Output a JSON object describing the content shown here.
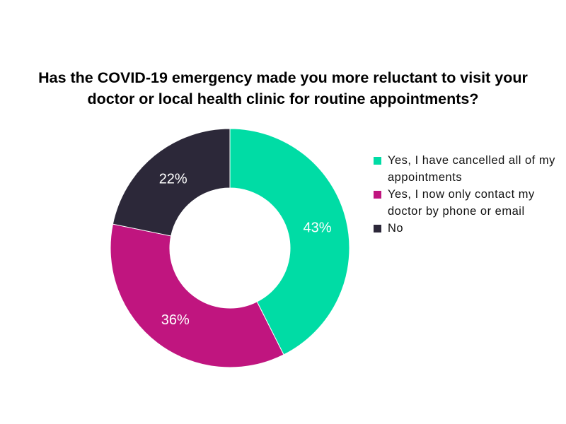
{
  "chart_data": {
    "type": "pie",
    "subtype": "donut",
    "title_lines": [
      "Has the COVID-19 emergency made you more reluctant to visit your",
      "doctor or local health clinic for routine appointments?"
    ],
    "categories": [
      "Yes, I have cancelled all of my appointments",
      "Yes, I now only contact my doctor by phone or email",
      "No"
    ],
    "values": [
      43,
      36,
      22
    ],
    "data_labels": [
      "43%",
      "36%",
      "22%"
    ],
    "colors": [
      "#00DCA5",
      "#C0157F",
      "#2C2839"
    ],
    "legend_placement": "right"
  }
}
